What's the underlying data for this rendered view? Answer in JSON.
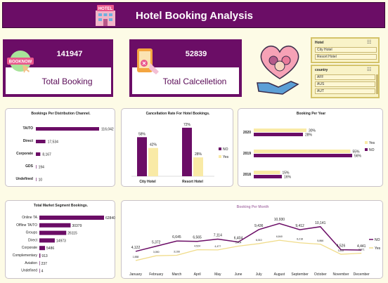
{
  "header": {
    "title": "Hotel Booking Analysis",
    "logo_text": "HOTEL"
  },
  "kpis": {
    "total_booking": {
      "value": "141947",
      "label": "Total Booking",
      "badge": "BOOKNOW"
    },
    "total_cancel": {
      "value": "52839",
      "label": "Total Calcelletion"
    }
  },
  "slicers": {
    "hotel": {
      "title": "Hotel",
      "items": [
        "City Hotel",
        "Resort Hotel"
      ]
    },
    "country": {
      "title": "country",
      "items": [
        "AFF",
        "AUS",
        "AUT"
      ]
    }
  },
  "colors": {
    "purple": "#6b0d66",
    "cream": "#f9eaa6",
    "bg": "#fdfbe6"
  },
  "chart_data": [
    {
      "type": "bar",
      "orientation": "horizontal",
      "title": "Bookings Per Distribution Channel.",
      "categories": [
        "TA/TO",
        "Direct",
        "Corporate",
        "GDS",
        "Undefined"
      ],
      "values": [
        116042,
        17534,
        8167,
        194,
        10
      ],
      "value_labels": [
        "116,042",
        "17,534",
        "8,167",
        "194",
        "10"
      ]
    },
    {
      "type": "bar",
      "title": "Cancellation Rate For Hotel Bookings.",
      "categories": [
        "City Hotel",
        "Resort Hotel"
      ],
      "series": [
        {
          "name": "NO",
          "values": [
            58,
            72
          ],
          "labels": [
            "58%",
            "72%"
          ]
        },
        {
          "name": "Yes",
          "values": [
            42,
            28
          ],
          "labels": [
            "42%",
            "28%"
          ]
        }
      ],
      "legend": "right"
    },
    {
      "type": "bar",
      "orientation": "horizontal",
      "title": "Booking Per Year",
      "categories": [
        "2020",
        "2019",
        "2018"
      ],
      "series": [
        {
          "name": "Yes",
          "values": [
            30,
            55,
            15
          ],
          "labels": [
            "30%",
            "55%",
            "15%"
          ]
        },
        {
          "name": "NO",
          "values": [
            28,
            56,
            16
          ],
          "labels": [
            "28%",
            "56%",
            "16%"
          ]
        }
      ],
      "legend": "right"
    },
    {
      "type": "bar",
      "orientation": "horizontal",
      "title": "Total Market Segment Bookings.",
      "categories": [
        "Online TA",
        "Offline TA/TO",
        "Groups",
        "Direct",
        "Corporate",
        "Complementary",
        "Aviation",
        "Undefined"
      ],
      "values": [
        62840,
        30379,
        26115,
        14973,
        5486,
        913,
        237,
        4
      ],
      "value_labels": [
        "62840",
        "30379",
        "26115",
        "14973",
        "5486",
        "913",
        "237",
        "4"
      ]
    },
    {
      "type": "line",
      "title": "Booking Per Month",
      "categories": [
        "January",
        "February",
        "March",
        "April",
        "May",
        "June",
        "July",
        "August",
        "September",
        "October",
        "November",
        "December"
      ],
      "series": [
        {
          "name": "NO",
          "values": [
            4122,
            5372,
            6645,
            6565,
            7114,
            6404,
            9436,
            10930,
            9412,
            10141,
            4526,
            4441
          ],
          "labels": [
            "4,122",
            "5,372",
            "6,645",
            "6,565",
            "7,114",
            "6,404",
            "9,436",
            "10,930",
            "9,412",
            "10,141",
            "4,526",
            "4,441"
          ]
        },
        {
          "name": "Yes",
          "values": [
            1888,
            3050,
            3166,
            4524,
            4477,
            5404,
            6010,
            6840,
            6218,
            5866,
            3422,
            3671
          ],
          "labels": [
            "1,888",
            "3,050",
            "3,166",
            "4,524",
            "4,477",
            "5,404",
            "6,010",
            "6,840",
            "6,218",
            "5,866",
            "3,422",
            "3,671"
          ]
        }
      ],
      "legend": "right"
    }
  ]
}
